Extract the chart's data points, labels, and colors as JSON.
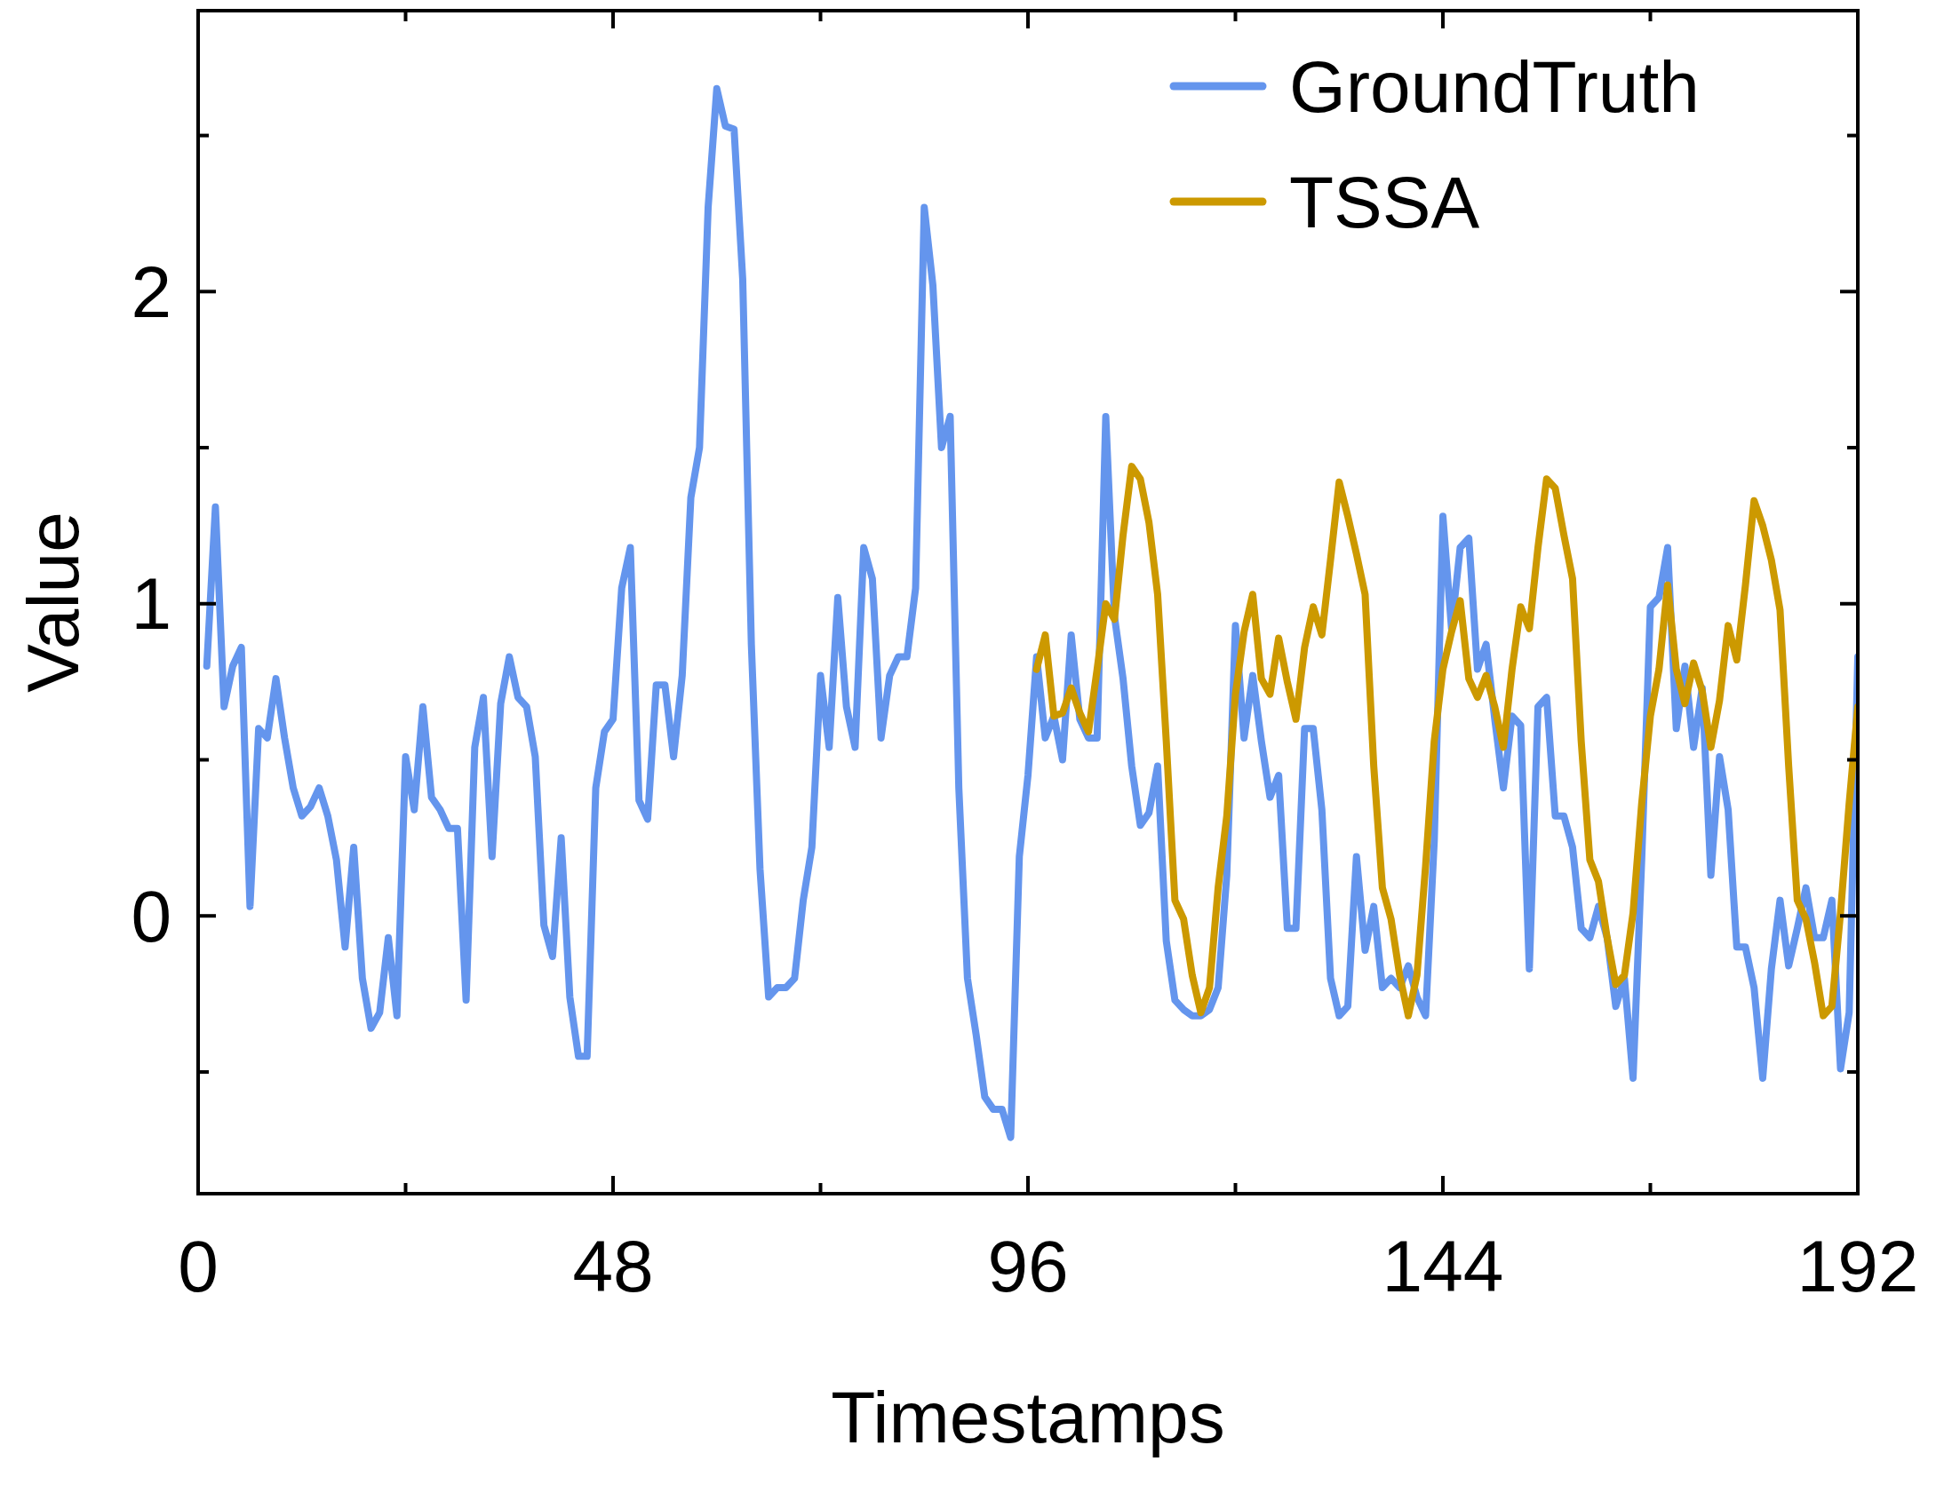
{
  "chart_data": {
    "type": "line",
    "xlabel": "Timestamps",
    "ylabel": "Value",
    "xlim": [
      0,
      192
    ],
    "ylim": [
      -0.89,
      2.9
    ],
    "xticks": [
      0,
      {
        "value": 24,
        "label": null
      },
      48,
      {
        "value": 72,
        "label": null
      },
      96,
      {
        "value": 120,
        "label": null
      },
      144,
      {
        "value": 168,
        "label": null
      },
      192
    ],
    "yticks": [
      {
        "value": -0.5,
        "label": null
      },
      0,
      {
        "value": 0.5,
        "label": null
      },
      1,
      {
        "value": 1.5,
        "label": null
      },
      2,
      {
        "value": 2.5,
        "label": null
      }
    ],
    "legend": "top right",
    "series": [
      {
        "name": "GroundTruth",
        "color": "#6495ed",
        "x": [
          1,
          2,
          3,
          4,
          5,
          6,
          7,
          8,
          9,
          10,
          11,
          12,
          13,
          14,
          15,
          16,
          17,
          18,
          19,
          20,
          21,
          22,
          23,
          24,
          25,
          26,
          27,
          28,
          29,
          30,
          31,
          32,
          33,
          34,
          35,
          36,
          37,
          38,
          39,
          40,
          41,
          42,
          43,
          44,
          45,
          46,
          47,
          48,
          49,
          50,
          51,
          52,
          53,
          54,
          55,
          56,
          57,
          58,
          59,
          60,
          61,
          62,
          63,
          64,
          65,
          66,
          67,
          68,
          69,
          70,
          71,
          72,
          73,
          74,
          75,
          76,
          77,
          78,
          79,
          80,
          81,
          82,
          83,
          84,
          85,
          86,
          87,
          88,
          89,
          90,
          91,
          92,
          93,
          94,
          95,
          96,
          97,
          98,
          99,
          100,
          101,
          102,
          103,
          104,
          105,
          106,
          107,
          108,
          109,
          110,
          111,
          112,
          113,
          114,
          115,
          116,
          117,
          118,
          119,
          120,
          121,
          122,
          123,
          124,
          125,
          126,
          127,
          128,
          129,
          130,
          131,
          132,
          133,
          134,
          135,
          136,
          137,
          138,
          139,
          140,
          141,
          142,
          143,
          144,
          145,
          146,
          147,
          148,
          149,
          150,
          151,
          152,
          153,
          154,
          155,
          156,
          157,
          158,
          159,
          160,
          161,
          162,
          163,
          164,
          165,
          166,
          167,
          168,
          169,
          170,
          171,
          172,
          173,
          174,
          175,
          176,
          177,
          178,
          179,
          180,
          181,
          182,
          183,
          184,
          185,
          186,
          187,
          188,
          189,
          190,
          191,
          192
        ],
        "values": [
          0.8,
          1.31,
          0.67,
          0.8,
          0.86,
          0.03,
          0.6,
          0.57,
          0.76,
          0.57,
          0.41,
          0.32,
          0.35,
          0.41,
          0.32,
          0.18,
          -0.1,
          0.22,
          -0.2,
          -0.36,
          -0.31,
          -0.07,
          -0.32,
          0.51,
          0.34,
          0.67,
          0.38,
          0.34,
          0.28,
          0.28,
          -0.27,
          0.54,
          0.7,
          0.19,
          0.68,
          0.83,
          0.7,
          0.67,
          0.51,
          -0.03,
          -0.13,
          0.25,
          -0.26,
          -0.45,
          -0.45,
          0.41,
          0.59,
          0.63,
          1.05,
          1.18,
          0.37,
          0.31,
          0.74,
          0.74,
          0.51,
          0.77,
          1.34,
          1.5,
          2.27,
          2.65,
          2.53,
          2.52,
          2.04,
          0.87,
          0.15,
          -0.26,
          -0.23,
          -0.23,
          -0.2,
          0.05,
          0.22,
          0.77,
          0.54,
          1.02,
          0.67,
          0.54,
          1.18,
          1.08,
          0.57,
          0.77,
          0.83,
          0.83,
          1.05,
          2.27,
          2.02,
          1.5,
          1.6,
          0.41,
          -0.2,
          -0.38,
          -0.58,
          -0.62,
          -0.62,
          -0.71,
          0.19,
          0.45,
          0.83,
          0.57,
          0.64,
          0.5,
          0.9,
          0.63,
          0.57,
          0.57,
          1.6,
          0.96,
          0.76,
          0.48,
          0.29,
          0.33,
          0.48,
          -0.08,
          -0.27,
          -0.3,
          -0.32,
          -0.32,
          -0.3,
          -0.23,
          0.13,
          0.93,
          0.57,
          0.77,
          0.56,
          0.38,
          0.45,
          -0.04,
          -0.04,
          0.6,
          0.6,
          0.34,
          -0.2,
          -0.32,
          -0.29,
          0.19,
          -0.11,
          0.03,
          -0.23,
          -0.2,
          -0.23,
          -0.16,
          -0.26,
          -0.32,
          0.24,
          1.28,
          0.92,
          1.18,
          1.21,
          0.79,
          0.87,
          0.63,
          0.41,
          0.64,
          0.61,
          -0.17,
          0.67,
          0.7,
          0.32,
          0.32,
          0.22,
          -0.04,
          -0.07,
          0.03,
          -0.07,
          -0.29,
          -0.2,
          -0.52,
          0.18,
          0.99,
          1.02,
          1.18,
          0.6,
          0.8,
          0.54,
          0.73,
          0.13,
          0.51,
          0.34,
          -0.1,
          -0.1,
          -0.23,
          -0.52,
          -0.17,
          0.05,
          -0.16,
          -0.04,
          0.09,
          -0.07,
          -0.07,
          0.05,
          -0.49,
          -0.31,
          0.83
        ]
      },
      {
        "name": "TSSA",
        "color": "#cc9900",
        "x": [
          97,
          98,
          99,
          100,
          101,
          102,
          103,
          104,
          105,
          106,
          107,
          108,
          109,
          110,
          111,
          112,
          113,
          114,
          115,
          116,
          117,
          118,
          119,
          120,
          121,
          122,
          123,
          124,
          125,
          126,
          127,
          128,
          129,
          130,
          131,
          132,
          133,
          134,
          135,
          136,
          137,
          138,
          139,
          140,
          141,
          142,
          143,
          144,
          145,
          146,
          147,
          148,
          149,
          150,
          151,
          152,
          153,
          154,
          155,
          156,
          157,
          158,
          159,
          160,
          161,
          162,
          163,
          164,
          165,
          166,
          167,
          168,
          169,
          170,
          171,
          172,
          173,
          174,
          175,
          176,
          177,
          178,
          179,
          180,
          181,
          182,
          183,
          184,
          185,
          186,
          187,
          188,
          189,
          190,
          191,
          192
        ],
        "values": [
          0.79,
          0.9,
          0.64,
          0.65,
          0.73,
          0.65,
          0.59,
          0.79,
          1.0,
          0.95,
          1.22,
          1.44,
          1.4,
          1.26,
          1.03,
          0.56,
          0.05,
          -0.01,
          -0.19,
          -0.31,
          -0.23,
          0.09,
          0.32,
          0.71,
          0.91,
          1.03,
          0.76,
          0.71,
          0.89,
          0.75,
          0.63,
          0.86,
          0.99,
          0.9,
          1.14,
          1.39,
          1.28,
          1.16,
          1.03,
          0.48,
          0.09,
          -0.01,
          -0.19,
          -0.32,
          -0.19,
          0.16,
          0.56,
          0.79,
          0.91,
          1.01,
          0.76,
          0.7,
          0.77,
          0.67,
          0.54,
          0.79,
          0.99,
          0.92,
          1.18,
          1.4,
          1.37,
          1.22,
          1.08,
          0.56,
          0.18,
          0.11,
          -0.07,
          -0.22,
          -0.19,
          0.01,
          0.36,
          0.64,
          0.79,
          1.06,
          0.79,
          0.68,
          0.81,
          0.72,
          0.54,
          0.69,
          0.93,
          0.82,
          1.06,
          1.33,
          1.25,
          1.14,
          0.98,
          0.48,
          0.05,
          -0.01,
          -0.15,
          -0.32,
          -0.29,
          0.01,
          0.36,
          0.67
        ]
      }
    ]
  }
}
